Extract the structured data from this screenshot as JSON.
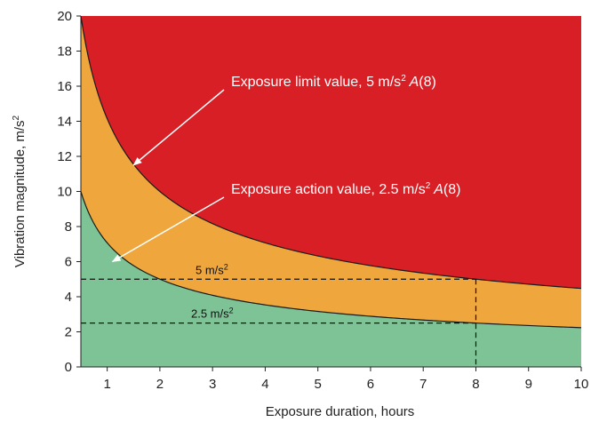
{
  "chart_data": {
    "type": "area",
    "title": "",
    "xlabel": "Exposure duration, hours",
    "ylabel_text": "Vibration magnitude, m/s",
    "ylabel_sup": "2",
    "xlim": [
      0.5,
      10
    ],
    "ylim": [
      0,
      20
    ],
    "x_ticks": [
      1,
      2,
      3,
      4,
      5,
      6,
      7,
      8,
      9,
      10
    ],
    "y_ticks": [
      0,
      2,
      4,
      6,
      8,
      10,
      12,
      14,
      16,
      18,
      20
    ],
    "grid": false,
    "series": [
      {
        "label_main": "Exposure limit value, 5 m/s",
        "label_sup": "2",
        "label_italic": "A",
        "label_tail": "(8)",
        "a8_value": 5,
        "color": "#d81f26",
        "annotation_point": [
          1.5,
          11.5
        ]
      },
      {
        "label_main": "Exposure action value, 2.5 m/s",
        "label_sup": "2",
        "label_italic": "A",
        "label_tail": "(8)",
        "a8_value": 2.5,
        "color": "#efa63d",
        "annotation_point": [
          1.1,
          6.0
        ]
      }
    ],
    "below_color": "#7dc396",
    "reference_lines": [
      {
        "label": "5 m/s",
        "sup": "2",
        "y": 5
      },
      {
        "label": "2.5 m/s",
        "sup": "2",
        "y": 2.5
      }
    ],
    "reference_x": 8
  }
}
